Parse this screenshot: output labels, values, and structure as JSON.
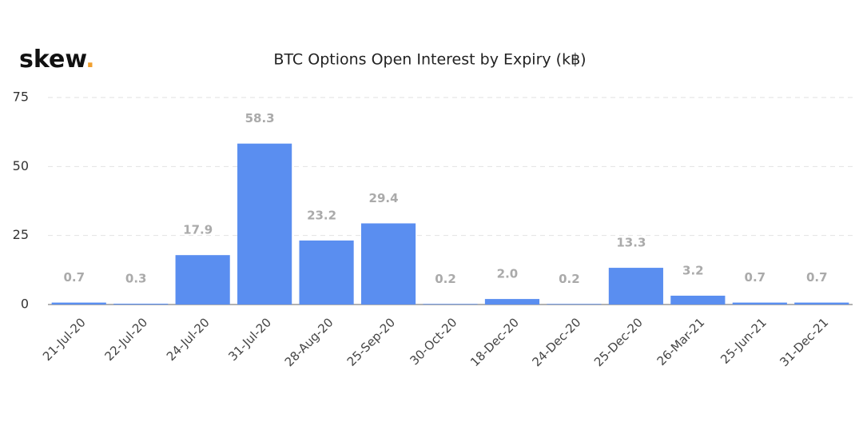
{
  "logo": "skew",
  "logo_dot": ".",
  "chart_data": {
    "type": "bar",
    "title": "BTC Options Open Interest by Expiry (k฿)",
    "categories": [
      "21-Jul-20",
      "22-Jul-20",
      "24-Jul-20",
      "31-Jul-20",
      "28-Aug-20",
      "25-Sep-20",
      "30-Oct-20",
      "18-Dec-20",
      "24-Dec-20",
      "25-Dec-20",
      "26-Mar-21",
      "25-Jun-21",
      "31-Dec-21"
    ],
    "values": [
      0.7,
      0.3,
      17.9,
      58.3,
      23.2,
      29.4,
      0.2,
      2.0,
      0.2,
      13.3,
      3.2,
      0.7,
      0.7
    ],
    "value_labels": [
      "0.7",
      "0.3",
      "17.9",
      "58.3",
      "23.2",
      "29.4",
      "0.2",
      "2.0",
      "0.2",
      "13.3",
      "3.2",
      "0.7",
      "0.7"
    ],
    "color": "#5a8ef0",
    "ylim": [
      0,
      75
    ],
    "yticks": [
      0,
      25,
      50,
      75
    ],
    "grid": true
  }
}
